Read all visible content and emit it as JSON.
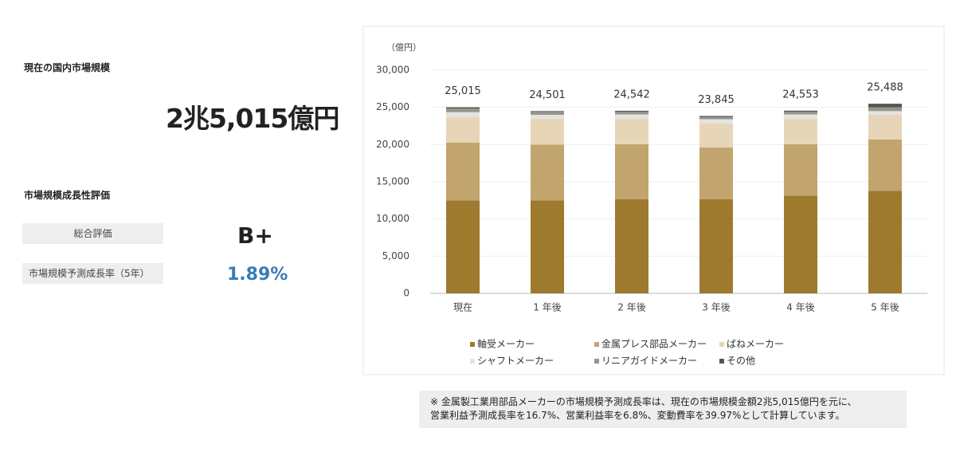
{
  "market_size": {
    "heading": "現在の国内市場規模",
    "value": "2兆5,015億円"
  },
  "growth": {
    "heading": "市場規模成長性評価",
    "rows": [
      {
        "label": "総合評価",
        "value": "B+"
      },
      {
        "label": "市場規模予測成長率（5年）",
        "value": "1.89%"
      }
    ]
  },
  "chart_data": {
    "type": "stacked_bar",
    "y_label": "（億円）",
    "categories": [
      "現在",
      "1 年後",
      "2 年後",
      "3 年後",
      "4 年後",
      "5 年後"
    ],
    "series": [
      {
        "name": "軸受メーカー",
        "color": "#9e7a2e",
        "values": [
          12500,
          12500,
          12650,
          12650,
          13150,
          13800
        ]
      },
      {
        "name": "金属プレス部品メーカー",
        "color": "#c2a46e",
        "values": [
          7750,
          7500,
          7400,
          6950,
          6900,
          6900
        ]
      },
      {
        "name": "ばねメーカー",
        "color": "#e7d5b8",
        "values": [
          3450,
          3450,
          3400,
          3250,
          3400,
          3300
        ]
      },
      {
        "name": "シャフトメーカー",
        "color": "#e3e3e3",
        "values": [
          650,
          550,
          600,
          550,
          600,
          500
        ]
      },
      {
        "name": "リニアガイドメーカー",
        "color": "#9a958a",
        "values": [
          500,
          400,
          350,
          300,
          350,
          500
        ]
      },
      {
        "name": "その他",
        "color": "#555555",
        "values": [
          165,
          101,
          142,
          145,
          153,
          488
        ]
      }
    ],
    "totals": [
      {
        "value": 25015,
        "label": "25,015"
      },
      {
        "value": 24501,
        "label": "24,501"
      },
      {
        "value": 24542,
        "label": "24,542"
      },
      {
        "value": 23845,
        "label": "23,845"
      },
      {
        "value": 24553,
        "label": "24,553"
      },
      {
        "value": 25488,
        "label": "25,488"
      }
    ],
    "ylim": [
      0,
      30000
    ],
    "yticks": [
      0,
      {
        "value": 5000,
        "label": "5,000"
      },
      {
        "value": 10000,
        "label": "10,000"
      },
      {
        "value": 15000,
        "label": "15,000"
      },
      {
        "value": 20000,
        "label": "20,000"
      },
      {
        "value": 25000,
        "label": "25,000"
      },
      {
        "value": 30000,
        "label": "30,000"
      }
    ],
    "grid": true
  },
  "note": {
    "lines": [
      "※ 金属製工業用部品メーカーの市場規模予測成長率は、現在の市場規模金額2兆5,015億円を元に、",
      "営業利益予測成長率を16.7%、営業利益率を6.8%、変動費率を39.97%として計算しています。"
    ]
  }
}
